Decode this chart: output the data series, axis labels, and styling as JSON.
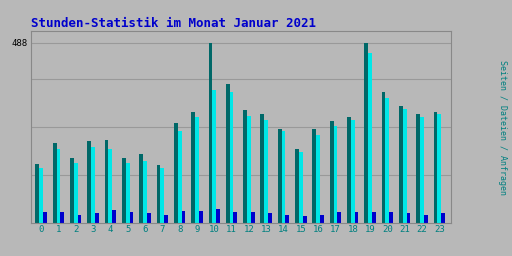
{
  "title": "Stunden-Statistik im Monat Januar 2021",
  "title_color": "#0000cc",
  "background_color": "#b8b8b8",
  "plot_bg_color": "#b8b8b8",
  "ylabel": "Seiten / Dateien / Anfragen",
  "ylabel_color": "#008080",
  "grid_color": "#999999",
  "hours": [
    0,
    1,
    2,
    3,
    4,
    5,
    6,
    7,
    8,
    9,
    10,
    11,
    12,
    13,
    14,
    15,
    16,
    17,
    18,
    19,
    20,
    21,
    22,
    23
  ],
  "seiten": [
    160,
    215,
    175,
    220,
    225,
    175,
    185,
    155,
    270,
    300,
    488,
    375,
    305,
    295,
    255,
    200,
    255,
    275,
    285,
    488,
    355,
    315,
    295,
    300
  ],
  "dateien": [
    148,
    200,
    162,
    205,
    200,
    162,
    168,
    148,
    248,
    285,
    360,
    355,
    290,
    278,
    248,
    192,
    238,
    262,
    278,
    460,
    338,
    308,
    285,
    295
  ],
  "anfragen": [
    28,
    30,
    22,
    25,
    35,
    28,
    25,
    20,
    32,
    32,
    38,
    28,
    28,
    25,
    22,
    18,
    22,
    28,
    30,
    30,
    28,
    25,
    22,
    25
  ],
  "color_seiten": "#006868",
  "color_dateien": "#00e8e8",
  "color_anfragen": "#0000cc",
  "ylim": [
    0,
    520
  ],
  "ytick_val": 488,
  "bar_width": 0.22
}
